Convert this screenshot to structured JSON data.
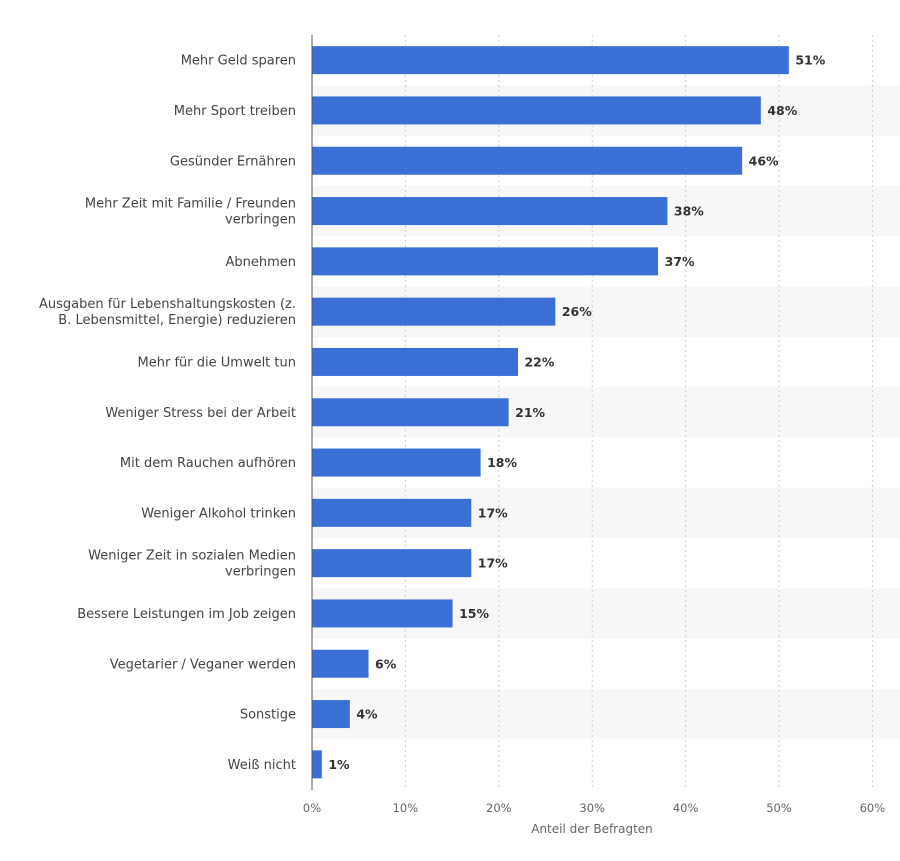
{
  "chart_data": {
    "type": "bar",
    "orientation": "horizontal",
    "title": "",
    "xlabel": "Anteil der Befragten",
    "ylabel": "",
    "xlim": [
      0,
      60
    ],
    "ticks": [
      0,
      10,
      20,
      30,
      40,
      50,
      60
    ],
    "tick_labels": [
      "0%",
      "10%",
      "20%",
      "30%",
      "40%",
      "50%",
      "60%"
    ],
    "grid": true,
    "bar_color": "#3a70d6",
    "categories": [
      [
        "Mehr Geld sparen"
      ],
      [
        "Mehr Sport treiben"
      ],
      [
        "Gesünder Ernähren"
      ],
      [
        "Mehr Zeit mit Familie / Freunden",
        "verbringen"
      ],
      [
        "Abnehmen"
      ],
      [
        "Ausgaben für Lebenshaltungskosten (z.",
        "B. Lebensmittel, Energie) reduzieren"
      ],
      [
        "Mehr für die Umwelt tun"
      ],
      [
        "Weniger Stress bei der Arbeit"
      ],
      [
        "Mit dem Rauchen aufhören"
      ],
      [
        "Weniger Alkohol trinken"
      ],
      [
        "Weniger Zeit in sozialen Medien",
        "verbringen"
      ],
      [
        "Bessere Leistungen im Job zeigen"
      ],
      [
        "Vegetarier / Veganer werden"
      ],
      [
        "Sonstige"
      ],
      [
        "Weiß nicht"
      ]
    ],
    "values": [
      51,
      48,
      46,
      38,
      37,
      26,
      22,
      21,
      18,
      17,
      17,
      15,
      6,
      4,
      1
    ],
    "value_labels": [
      "51%",
      "48%",
      "46%",
      "38%",
      "37%",
      "26%",
      "22%",
      "21%",
      "18%",
      "17%",
      "17%",
      "15%",
      "6%",
      "4%",
      "1%"
    ]
  }
}
